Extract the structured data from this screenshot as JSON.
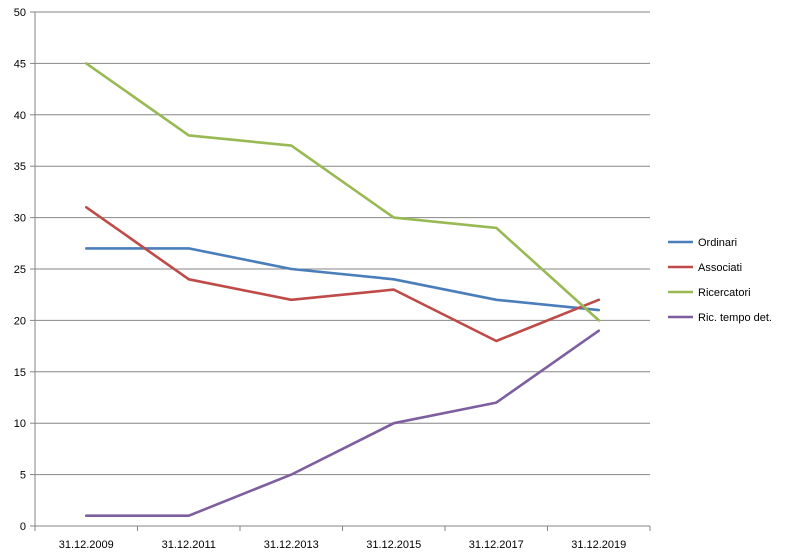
{
  "chart_data": {
    "type": "line",
    "title": "",
    "xlabel": "",
    "ylabel": "",
    "categories": [
      "31.12.2009",
      "31.12.2011",
      "31.12.2013",
      "31.12.2015",
      "31.12.2017",
      "31.12.2019"
    ],
    "ylim": [
      0,
      50
    ],
    "yticks": [
      0,
      5,
      10,
      15,
      20,
      25,
      30,
      35,
      40,
      45,
      50
    ],
    "grid": true,
    "legend_position": "right",
    "series": [
      {
        "name": "Ordinari",
        "color": "#4a7ebb",
        "values": [
          27,
          27,
          25,
          24,
          22,
          21
        ]
      },
      {
        "name": "Associati",
        "color": "#be4b48",
        "values": [
          31,
          24,
          22,
          23,
          18,
          22
        ]
      },
      {
        "name": "Ricercatori",
        "color": "#98b954",
        "values": [
          45,
          38,
          37,
          30,
          29,
          20
        ]
      },
      {
        "name": "Ric. tempo det.",
        "color": "#7d5fa0",
        "values": [
          1,
          1,
          5,
          10,
          12,
          19
        ]
      }
    ]
  }
}
